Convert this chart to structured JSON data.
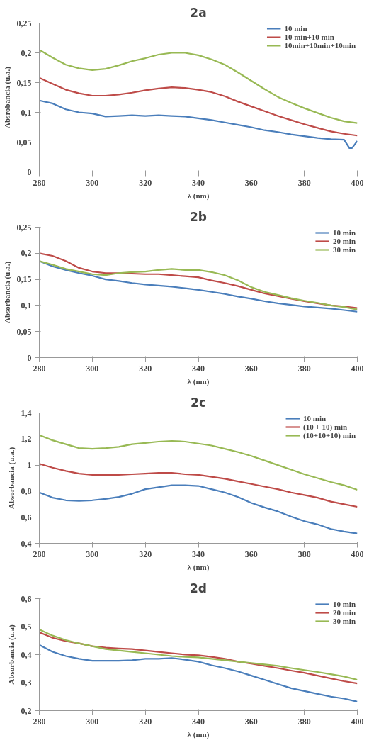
{
  "chart_data": [
    {
      "type": "line",
      "title": "2a",
      "xlabel": "λ (nm)",
      "ylabel": "Absrobancia (u.a.)",
      "legend": "top right",
      "grid": false,
      "x": [
        280,
        285,
        290,
        295,
        300,
        305,
        310,
        315,
        320,
        325,
        330,
        335,
        340,
        345,
        350,
        355,
        360,
        365,
        370,
        375,
        380,
        385,
        390,
        395,
        400
      ],
      "xlim": [
        280,
        400
      ],
      "xticks": [
        280,
        300,
        320,
        340,
        360,
        380,
        400
      ],
      "ylim": [
        0,
        0.25
      ],
      "yticks": [
        {
          "value": 0,
          "label": "0"
        },
        {
          "value": 0.05,
          "label": "0,05"
        },
        {
          "value": 0.1,
          "label": "0,1"
        },
        {
          "value": 0.15,
          "label": "0,15"
        },
        {
          "value": 0.2,
          "label": "0,2"
        },
        {
          "value": 0.25,
          "label": "0,25"
        }
      ],
      "series": [
        {
          "name": "10 min",
          "color": "#4a7ebb",
          "x": [
            280,
            285,
            290,
            295,
            300,
            305,
            310,
            315,
            320,
            325,
            330,
            335,
            340,
            345,
            350,
            355,
            360,
            365,
            370,
            375,
            380,
            385,
            390,
            395,
            397,
            398,
            400
          ],
          "values": [
            0.12,
            0.115,
            0.105,
            0.1,
            0.098,
            0.093,
            0.094,
            0.095,
            0.094,
            0.095,
            0.094,
            0.093,
            0.09,
            0.087,
            0.083,
            0.079,
            0.075,
            0.07,
            0.067,
            0.063,
            0.06,
            0.057,
            0.055,
            0.054,
            0.04,
            0.04,
            0.052
          ]
        },
        {
          "name": "10 min+10 min",
          "color": "#be4b48",
          "values": [
            0.158,
            0.148,
            0.138,
            0.132,
            0.128,
            0.128,
            0.13,
            0.133,
            0.137,
            0.14,
            0.142,
            0.141,
            0.138,
            0.134,
            0.127,
            0.118,
            0.11,
            0.102,
            0.094,
            0.087,
            0.08,
            0.074,
            0.068,
            0.064,
            0.061
          ]
        },
        {
          "name": "10min+10min+10min",
          "color": "#98b954",
          "values": [
            0.205,
            0.192,
            0.18,
            0.174,
            0.171,
            0.173,
            0.179,
            0.186,
            0.191,
            0.197,
            0.2,
            0.2,
            0.196,
            0.189,
            0.18,
            0.167,
            0.153,
            0.139,
            0.126,
            0.116,
            0.107,
            0.099,
            0.091,
            0.085,
            0.082
          ]
        }
      ]
    },
    {
      "type": "line",
      "title": "2b",
      "xlabel": "λ (nm)",
      "ylabel": "Absorbancia (u.a.)",
      "legend": "top right",
      "grid": false,
      "x": [
        280,
        285,
        290,
        295,
        300,
        305,
        310,
        315,
        320,
        325,
        330,
        335,
        340,
        345,
        350,
        355,
        360,
        365,
        370,
        375,
        380,
        385,
        390,
        395,
        400
      ],
      "xlim": [
        280,
        400
      ],
      "xticks": [
        280,
        300,
        320,
        340,
        360,
        380,
        400
      ],
      "ylim": [
        0,
        0.25
      ],
      "yticks": [
        {
          "value": 0,
          "label": "0"
        },
        {
          "value": 0.05,
          "label": "0,05"
        },
        {
          "value": 0.1,
          "label": "0,1"
        },
        {
          "value": 0.15,
          "label": "0,15"
        },
        {
          "value": 0.2,
          "label": "0,2"
        },
        {
          "value": 0.25,
          "label": "0,25"
        }
      ],
      "series": [
        {
          "name": "10 min",
          "color": "#4a7ebb",
          "values": [
            0.185,
            0.175,
            0.168,
            0.162,
            0.157,
            0.15,
            0.147,
            0.143,
            0.14,
            0.138,
            0.136,
            0.133,
            0.13,
            0.126,
            0.122,
            0.117,
            0.113,
            0.108,
            0.104,
            0.101,
            0.098,
            0.096,
            0.094,
            0.091,
            0.088
          ]
        },
        {
          "name": "20 min",
          "color": "#be4b48",
          "values": [
            0.2,
            0.195,
            0.185,
            0.172,
            0.165,
            0.162,
            0.162,
            0.161,
            0.16,
            0.16,
            0.158,
            0.156,
            0.154,
            0.148,
            0.143,
            0.137,
            0.13,
            0.123,
            0.118,
            0.113,
            0.108,
            0.104,
            0.1,
            0.098,
            0.095
          ]
        },
        {
          "name": "30 min",
          "color": "#98b954",
          "values": [
            0.185,
            0.178,
            0.17,
            0.165,
            0.16,
            0.158,
            0.162,
            0.164,
            0.165,
            0.168,
            0.17,
            0.168,
            0.168,
            0.164,
            0.158,
            0.148,
            0.135,
            0.126,
            0.12,
            0.114,
            0.109,
            0.105,
            0.1,
            0.097,
            0.092
          ]
        }
      ]
    },
    {
      "type": "line",
      "title": "2c",
      "xlabel": "λ (nm)",
      "ylabel": "Absorbancia (u.a.)",
      "legend": "top right",
      "grid": false,
      "x": [
        280,
        285,
        290,
        295,
        300,
        305,
        310,
        315,
        320,
        325,
        330,
        335,
        340,
        345,
        350,
        355,
        360,
        365,
        370,
        375,
        380,
        385,
        390,
        395,
        400
      ],
      "xlim": [
        280,
        400
      ],
      "xticks": [
        280,
        300,
        320,
        340,
        360,
        380,
        400
      ],
      "ylim": [
        0.4,
        1.4
      ],
      "yticks": [
        {
          "value": 0.4,
          "label": "0,4"
        },
        {
          "value": 0.6,
          "label": "0,6"
        },
        {
          "value": 0.8,
          "label": "0,8"
        },
        1,
        {
          "value": 1.2,
          "label": "1,2"
        },
        {
          "value": 1.4,
          "label": "1,4"
        }
      ],
      "series": [
        {
          "name": "10 min",
          "color": "#4a7ebb",
          "values": [
            0.79,
            0.75,
            0.73,
            0.725,
            0.73,
            0.74,
            0.755,
            0.78,
            0.815,
            0.83,
            0.845,
            0.845,
            0.84,
            0.815,
            0.79,
            0.755,
            0.71,
            0.675,
            0.645,
            0.605,
            0.57,
            0.545,
            0.51,
            0.49,
            0.475
          ]
        },
        {
          "name": "(10 + 10) min",
          "color": "#be4b48",
          "values": [
            1.01,
            0.98,
            0.955,
            0.935,
            0.925,
            0.925,
            0.925,
            0.93,
            0.935,
            0.94,
            0.94,
            0.93,
            0.925,
            0.91,
            0.895,
            0.875,
            0.855,
            0.835,
            0.815,
            0.79,
            0.77,
            0.75,
            0.72,
            0.7,
            0.68
          ]
        },
        {
          "name": "(10+10+10) min",
          "color": "#98b954",
          "values": [
            1.23,
            1.19,
            1.16,
            1.13,
            1.125,
            1.13,
            1.14,
            1.16,
            1.17,
            1.18,
            1.185,
            1.18,
            1.165,
            1.15,
            1.125,
            1.1,
            1.07,
            1.035,
            1.0,
            0.965,
            0.93,
            0.9,
            0.87,
            0.845,
            0.81
          ]
        }
      ]
    },
    {
      "type": "line",
      "title": "2d",
      "xlabel": "λ (nm)",
      "ylabel": "Absorbancia (u.a)",
      "legend": "top right",
      "grid": false,
      "x": [
        280,
        285,
        290,
        295,
        300,
        305,
        310,
        315,
        320,
        325,
        330,
        335,
        340,
        345,
        350,
        355,
        360,
        365,
        370,
        375,
        380,
        385,
        390,
        395,
        400
      ],
      "xlim": [
        280,
        400
      ],
      "xticks": [
        280,
        300,
        320,
        340,
        360,
        380,
        400
      ],
      "ylim": [
        0.2,
        0.6
      ],
      "yticks": [
        {
          "value": 0.2,
          "label": "0,2"
        },
        {
          "value": 0.3,
          "label": "0,3"
        },
        {
          "value": 0.4,
          "label": "0,4"
        },
        {
          "value": 0.5,
          "label": "0,5"
        },
        {
          "value": 0.6,
          "label": "0,6"
        }
      ],
      "series": [
        {
          "name": "10 min",
          "color": "#4a7ebb",
          "values": [
            0.435,
            0.41,
            0.395,
            0.385,
            0.378,
            0.378,
            0.378,
            0.38,
            0.385,
            0.385,
            0.388,
            0.382,
            0.375,
            0.362,
            0.352,
            0.34,
            0.325,
            0.31,
            0.295,
            0.28,
            0.27,
            0.26,
            0.25,
            0.243,
            0.232
          ]
        },
        {
          "name": "20 min",
          "color": "#be4b48",
          "values": [
            0.48,
            0.46,
            0.448,
            0.44,
            0.43,
            0.425,
            0.422,
            0.42,
            0.415,
            0.41,
            0.405,
            0.4,
            0.398,
            0.392,
            0.385,
            0.375,
            0.368,
            0.36,
            0.352,
            0.343,
            0.335,
            0.325,
            0.315,
            0.305,
            0.297
          ]
        },
        {
          "name": "30 min",
          "color": "#98b954",
          "values": [
            0.49,
            0.468,
            0.452,
            0.44,
            0.43,
            0.42,
            0.415,
            0.41,
            0.405,
            0.4,
            0.395,
            0.392,
            0.39,
            0.385,
            0.38,
            0.375,
            0.37,
            0.365,
            0.36,
            0.352,
            0.345,
            0.338,
            0.33,
            0.322,
            0.31
          ]
        }
      ]
    }
  ]
}
